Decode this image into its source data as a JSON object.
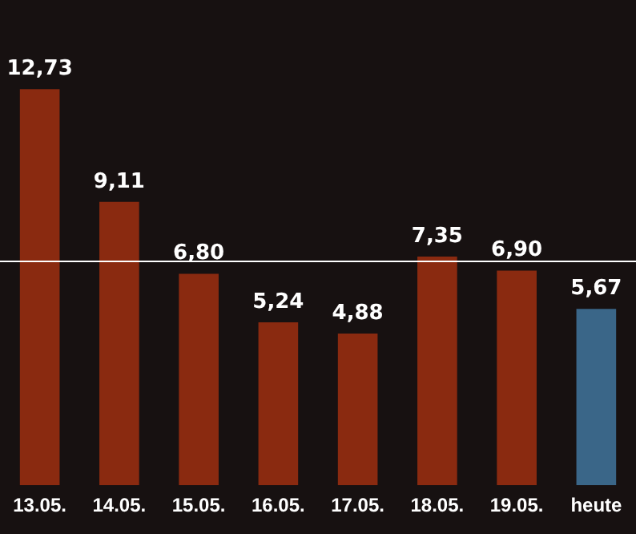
{
  "chart_data": {
    "type": "bar",
    "categories": [
      "13.05.",
      "14.05.",
      "15.05.",
      "16.05.",
      "17.05.",
      "18.05.",
      "19.05.",
      "heute"
    ],
    "values": [
      12.73,
      9.11,
      6.8,
      5.24,
      4.88,
      7.35,
      6.9,
      5.67
    ],
    "colors": [
      "#8a2a10",
      "#8a2a10",
      "#8a2a10",
      "#8a2a10",
      "#8a2a10",
      "#8a2a10",
      "#8a2a10",
      "#3a6688"
    ],
    "value_labels": [
      "12,73",
      "9,11",
      "6,80",
      "5,24",
      "4,88",
      "7,35",
      "6,90",
      "5,67"
    ],
    "ylim": [
      0,
      15.6
    ],
    "ref_lines": [
      {
        "axis": "y",
        "value": 7.2,
        "color": "#ffffff"
      }
    ],
    "legend": false,
    "tick_labels": "x"
  }
}
